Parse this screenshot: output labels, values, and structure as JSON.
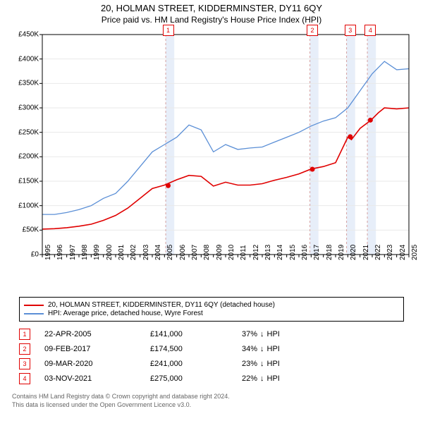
{
  "titles": {
    "line1": "20, HOLMAN STREET, KIDDERMINSTER, DY11 6QY",
    "line2": "Price paid vs. HM Land Registry's House Price Index (HPI)"
  },
  "chart": {
    "type": "line",
    "background_color": "#ffffff",
    "plot_border_color": "#000000",
    "grid_color": "#e9e9e9",
    "band_color": "#e7eef9",
    "dashed_color": "#d5a0a0",
    "ylim": [
      0,
      450000
    ],
    "ytick_step": 50000,
    "ytick_labels": [
      "£0",
      "£50K",
      "£100K",
      "£150K",
      "£200K",
      "£250K",
      "£300K",
      "£350K",
      "£400K",
      "£450K"
    ],
    "x_years": [
      1995,
      1996,
      1997,
      1998,
      1999,
      2000,
      2001,
      2002,
      2003,
      2004,
      2005,
      2006,
      2007,
      2008,
      2009,
      2010,
      2011,
      2012,
      2013,
      2014,
      2015,
      2016,
      2017,
      2018,
      2019,
      2020,
      2021,
      2022,
      2023,
      2024,
      2025
    ],
    "xlim": [
      1995,
      2025
    ],
    "series": [
      {
        "name": "property",
        "label": "20, HOLMAN STREET, KIDDERMINSTER, DY11 6QY (detached house)",
        "color": "#e00000",
        "line_width": 1.6,
        "points": [
          [
            1995,
            52000
          ],
          [
            1996,
            53000
          ],
          [
            1997,
            55000
          ],
          [
            1998,
            58000
          ],
          [
            1999,
            62000
          ],
          [
            2000,
            70000
          ],
          [
            2001,
            80000
          ],
          [
            2002,
            95000
          ],
          [
            2003,
            115000
          ],
          [
            2004,
            135000
          ],
          [
            2005,
            142000
          ],
          [
            2006,
            153000
          ],
          [
            2007,
            162000
          ],
          [
            2008,
            160000
          ],
          [
            2009,
            140000
          ],
          [
            2010,
            148000
          ],
          [
            2011,
            142000
          ],
          [
            2012,
            142000
          ],
          [
            2013,
            145000
          ],
          [
            2014,
            152000
          ],
          [
            2015,
            158000
          ],
          [
            2016,
            165000
          ],
          [
            2017,
            175000
          ],
          [
            2018,
            180000
          ],
          [
            2019,
            188000
          ],
          [
            2020,
            240000
          ],
          [
            2020.3,
            235000
          ],
          [
            2021,
            258000
          ],
          [
            2021.9,
            275000
          ],
          [
            2022.5,
            290000
          ],
          [
            2023,
            300000
          ],
          [
            2024,
            298000
          ],
          [
            2025,
            300000
          ]
        ]
      },
      {
        "name": "hpi",
        "label": "HPI: Average price, detached house, Wyre Forest",
        "color": "#5b8fd6",
        "line_width": 1.3,
        "points": [
          [
            1995,
            82000
          ],
          [
            1996,
            82000
          ],
          [
            1997,
            86000
          ],
          [
            1998,
            92000
          ],
          [
            1999,
            100000
          ],
          [
            2000,
            115000
          ],
          [
            2001,
            125000
          ],
          [
            2002,
            150000
          ],
          [
            2003,
            180000
          ],
          [
            2004,
            210000
          ],
          [
            2005,
            225000
          ],
          [
            2006,
            240000
          ],
          [
            2007,
            265000
          ],
          [
            2008,
            255000
          ],
          [
            2009,
            210000
          ],
          [
            2010,
            225000
          ],
          [
            2011,
            215000
          ],
          [
            2012,
            218000
          ],
          [
            2013,
            220000
          ],
          [
            2014,
            230000
          ],
          [
            2015,
            240000
          ],
          [
            2016,
            250000
          ],
          [
            2017,
            263000
          ],
          [
            2018,
            273000
          ],
          [
            2019,
            280000
          ],
          [
            2020,
            300000
          ],
          [
            2021,
            335000
          ],
          [
            2022,
            370000
          ],
          [
            2023,
            395000
          ],
          [
            2024,
            378000
          ],
          [
            2025,
            380000
          ]
        ]
      }
    ],
    "bands": [
      {
        "from": 2005.1,
        "to": 2005.8
      },
      {
        "from": 2016.9,
        "to": 2017.6
      },
      {
        "from": 2019.9,
        "to": 2020.6
      },
      {
        "from": 2021.6,
        "to": 2022.3
      }
    ],
    "sale_markers": [
      {
        "num": "1",
        "year": 2005.3,
        "price": 141000
      },
      {
        "num": "2",
        "year": 2017.1,
        "price": 174500
      },
      {
        "num": "3",
        "year": 2020.2,
        "price": 241000
      },
      {
        "num": "4",
        "year": 2021.85,
        "price": 275000
      }
    ],
    "label_fontsize": 10,
    "marker_border": "#e00000",
    "marker_text_color": "#e00000",
    "sale_point_color": "#e00000"
  },
  "legend": {
    "items": [
      {
        "color": "#e00000",
        "text": "20, HOLMAN STREET, KIDDERMINSTER, DY11 6QY (detached house)"
      },
      {
        "color": "#5b8fd6",
        "text": "HPI: Average price, detached house, Wyre Forest"
      }
    ]
  },
  "transactions": [
    {
      "num": "1",
      "date": "22-APR-2005",
      "price": "£141,000",
      "delta": "37%",
      "direction": "↓",
      "vs": "HPI"
    },
    {
      "num": "2",
      "date": "09-FEB-2017",
      "price": "£174,500",
      "delta": "34%",
      "direction": "↓",
      "vs": "HPI"
    },
    {
      "num": "3",
      "date": "09-MAR-2020",
      "price": "£241,000",
      "delta": "23%",
      "direction": "↓",
      "vs": "HPI"
    },
    {
      "num": "4",
      "date": "03-NOV-2021",
      "price": "£275,000",
      "delta": "22%",
      "direction": "↓",
      "vs": "HPI"
    }
  ],
  "footer": {
    "line1": "Contains HM Land Registry data © Crown copyright and database right 2024.",
    "line2": "This data is licensed under the Open Government Licence v3.0."
  },
  "colors": {
    "text": "#000000",
    "footer_text": "#666666"
  }
}
